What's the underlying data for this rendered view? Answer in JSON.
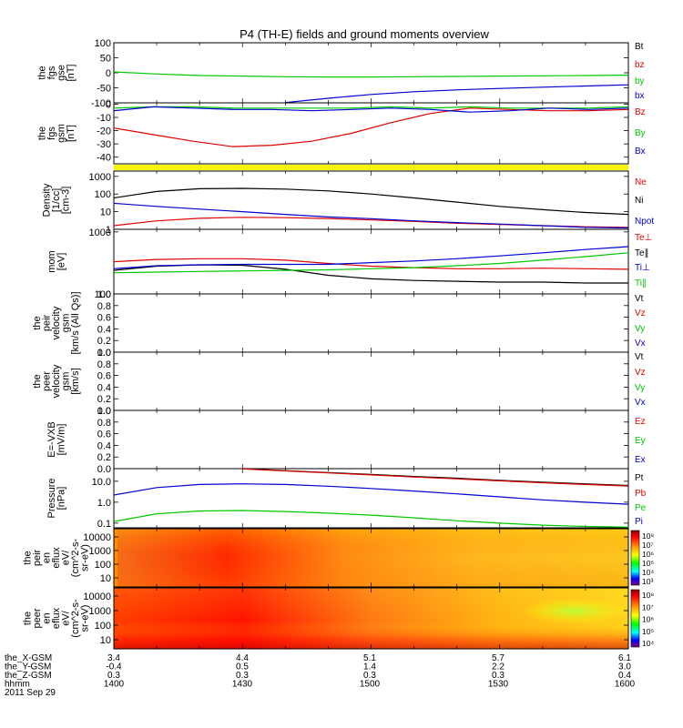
{
  "title": "P4 (TH-E) fields and ground moments overview",
  "colors": {
    "red": "#e00000",
    "green": "#00c800",
    "blue": "#0000d0",
    "black": "#000000",
    "yellow": "#f5f500"
  },
  "chart_data": [
    {
      "type": "line",
      "panel": "fgs-gse",
      "ylabel": [
        "the",
        "fgs",
        "gse",
        "[nT]"
      ],
      "ylim": [
        -100,
        100
      ],
      "yticks": [
        "100",
        "50",
        "0",
        "-50",
        "-100"
      ],
      "x": [
        1400,
        1410,
        1420,
        1430,
        1440,
        1450,
        1500,
        1510,
        1520,
        1530,
        1540,
        1550,
        1600
      ],
      "series": [
        {
          "name": "Bt",
          "color": "#000000",
          "values": [
            null,
            null,
            null,
            null,
            null,
            null,
            null,
            null,
            null,
            null,
            null,
            null,
            100
          ]
        },
        {
          "name": "bz",
          "color": "#e00000",
          "values": [
            null,
            null,
            null,
            null,
            null,
            null,
            null,
            null,
            null,
            null,
            null,
            null,
            100
          ]
        },
        {
          "name": "by",
          "color": "#00c800",
          "values": [
            3,
            -4,
            -9,
            -11,
            -13,
            -14,
            -14,
            -13,
            -12,
            -11,
            -10,
            -9,
            -8
          ]
        },
        {
          "name": "bx",
          "color": "#0000d0",
          "values": [
            null,
            null,
            null,
            null,
            -99,
            -85,
            -72,
            -63,
            -57,
            -52,
            -48,
            -44,
            -40
          ]
        }
      ],
      "legend": [
        "Bt",
        "bz",
        "by",
        "bx"
      ]
    },
    {
      "type": "line",
      "panel": "fgs-gsm",
      "ylabel": [
        "the",
        "fgs",
        "gsm",
        "[nT]"
      ],
      "ylim": [
        -45,
        1
      ],
      "yticks": [
        "0",
        "-10",
        "-20",
        "-30",
        "-40"
      ],
      "x": [
        1400,
        1405,
        1410,
        1420,
        1430,
        1440,
        1450,
        1500,
        1510,
        1520,
        1530,
        1540,
        1550,
        1600
      ],
      "series": [
        {
          "name": "Bz",
          "color": "#e00000",
          "values": [
            -18,
            -23,
            -28,
            -32,
            -31,
            -28,
            -22,
            -14,
            -7,
            -3,
            -4,
            -5,
            -5,
            -4
          ]
        },
        {
          "name": "By",
          "color": "#00c800",
          "values": [
            -3,
            -2,
            -2,
            -3,
            -3,
            -3,
            -3,
            -2,
            -3,
            -2,
            -3,
            -3,
            -3,
            -2
          ]
        },
        {
          "name": "Bx",
          "color": "#0000d0",
          "values": [
            -5,
            -2,
            -3,
            -4,
            -4,
            -5,
            -4,
            -3,
            -4,
            -6,
            -5,
            -3,
            -4,
            -3
          ]
        }
      ],
      "legend": [
        "Bz",
        "By",
        "Bx"
      ]
    },
    {
      "type": "line",
      "panel": "density",
      "ylabel": [
        "Density",
        "[1/cc]",
        "[cm-3]"
      ],
      "scale": "log",
      "ylim": [
        1,
        2000
      ],
      "yticks": [
        "1000",
        "100",
        "10",
        "1"
      ],
      "x": [
        1400,
        1410,
        1420,
        1430,
        1440,
        1450,
        1500,
        1510,
        1520,
        1530,
        1540,
        1550,
        1600
      ],
      "series": [
        {
          "name": "Ne",
          "color": "#e00000",
          "values": [
            1.6,
            3,
            4.2,
            4.8,
            4.6,
            4.1,
            3.4,
            2.8,
            2.2,
            1.9,
            1.6,
            1.4,
            1.3
          ]
        },
        {
          "name": "Ni",
          "color": "#000000",
          "values": [
            60,
            140,
            200,
            210,
            190,
            150,
            100,
            60,
            35,
            20,
            13,
            9,
            7
          ]
        },
        {
          "name": "Npot",
          "color": "#0000d0",
          "values": [
            30,
            20,
            14,
            10,
            7,
            5,
            4,
            3,
            2.4,
            2,
            1.6,
            1.3,
            1.2
          ]
        }
      ],
      "legend": [
        "Ne",
        "Ni",
        "Npot"
      ]
    },
    {
      "type": "line",
      "panel": "mom",
      "ylabel": [
        "mom",
        "[eV]"
      ],
      "scale": "log",
      "ylim": [
        100,
        1100
      ],
      "yticks": [
        "1000",
        "100"
      ],
      "x": [
        1400,
        1410,
        1420,
        1430,
        1440,
        1450,
        1500,
        1510,
        1520,
        1530,
        1540,
        1550,
        1600
      ],
      "series": [
        {
          "name": "Te⊥",
          "color": "#e00000",
          "values": [
            330,
            360,
            370,
            370,
            350,
            310,
            280,
            265,
            255,
            255,
            260,
            255,
            250
          ]
        },
        {
          "name": "Te∥",
          "color": "#000000",
          "values": [
            240,
            280,
            295,
            290,
            250,
            200,
            175,
            165,
            160,
            155,
            155,
            150,
            150
          ]
        },
        {
          "name": "Ti⊥",
          "color": "#0000d0",
          "values": [
            255,
            285,
            295,
            300,
            300,
            300,
            320,
            340,
            370,
            410,
            460,
            520,
            580
          ]
        },
        {
          "name": "Ti∥",
          "color": "#00c800",
          "values": [
            220,
            225,
            230,
            235,
            240,
            245,
            255,
            265,
            285,
            310,
            350,
            400,
            460
          ]
        }
      ],
      "legend": [
        "Te⊥",
        "Te∥",
        "Ti⊥",
        "Ti∥"
      ]
    },
    {
      "type": "line",
      "panel": "peir-velocity",
      "ylabel": [
        "the",
        "peir",
        "velocity",
        "gsm",
        "[km/s (All Qs)]"
      ],
      "ylim": [
        0,
        1
      ],
      "yticks": [
        "1.0",
        "0.8",
        "0.6",
        "0.4",
        "0.2",
        "0.0"
      ],
      "series": [],
      "legend": [
        "Vt",
        "Vz",
        "Vy",
        "Vx"
      ]
    },
    {
      "type": "line",
      "panel": "peer-velocity",
      "ylabel": [
        "the",
        "peer",
        "velocity",
        "gsm",
        "[km/s]"
      ],
      "ylim": [
        0,
        1
      ],
      "yticks": [
        "1.0",
        "0.8",
        "0.6",
        "0.4",
        "0.2",
        "0.0"
      ],
      "series": [],
      "legend": [
        "Vt",
        "Vz",
        "Vy",
        "Vx"
      ]
    },
    {
      "type": "line",
      "panel": "exb",
      "ylabel": [
        "E=-VXB",
        "[mV/m]"
      ],
      "ylim": [
        0,
        1
      ],
      "yticks": [
        "1.0",
        "0.8",
        "0.6",
        "0.4",
        "0.2",
        "0.0"
      ],
      "series": [],
      "legend": [
        "Ez",
        "Ey",
        "Ex"
      ]
    },
    {
      "type": "line",
      "panel": "pressure",
      "ylabel": [
        "Pressure",
        "[nPa]"
      ],
      "scale": "log",
      "ylim": [
        0.06,
        40
      ],
      "yticks": [
        "10.0",
        "1.0",
        "0.1"
      ],
      "x": [
        1400,
        1410,
        1420,
        1430,
        1440,
        1450,
        1500,
        1510,
        1520,
        1530,
        1540,
        1550,
        1600
      ],
      "series": [
        {
          "name": "Pt",
          "color": "#000000",
          "values": [
            null,
            null,
            null,
            40,
            32,
            26,
            21,
            17,
            14,
            11,
            9,
            7.5,
            6.3
          ]
        },
        {
          "name": "Pb",
          "color": "#e00000",
          "values": [
            null,
            null,
            null,
            39,
            31,
            25,
            20,
            16,
            13,
            10.5,
            8.5,
            7,
            5.9
          ]
        },
        {
          "name": "Pe",
          "color": "#00c800",
          "values": [
            0.12,
            0.28,
            0.38,
            0.4,
            0.36,
            0.3,
            0.24,
            0.18,
            0.13,
            0.1,
            0.08,
            0.07,
            0.065
          ]
        },
        {
          "name": "Pi",
          "color": "#0000d0",
          "values": [
            2.2,
            5,
            7,
            7.5,
            7,
            5.8,
            4.5,
            3.4,
            2.5,
            1.8,
            1.3,
            1,
            0.8
          ]
        }
      ],
      "legend": [
        "Pt",
        "Pb",
        "Pe",
        "Pi"
      ]
    },
    {
      "type": "heatmap",
      "panel": "peir-en-eflux",
      "ylabel": [
        "the",
        "peir",
        "en",
        "eflux",
        "eV/",
        "(cm^2-s-",
        "sr-eV)"
      ],
      "yticks": [
        "10000",
        "1000",
        "100",
        "10"
      ],
      "colorbar_ticks": [
        "10⁸",
        "10⁷",
        "10⁶",
        "10⁵",
        "10⁴",
        "10³"
      ]
    },
    {
      "type": "heatmap",
      "panel": "peer-en-eflux",
      "ylabel": [
        "the",
        "peer",
        "en",
        "eflux",
        "eV/",
        "(cm^2-s-",
        "sr-eV)"
      ],
      "yticks": [
        "10000",
        "1000",
        "100",
        "10"
      ],
      "colorbar_ticks": [
        "10⁸",
        "10⁷",
        "10⁶",
        "10⁵",
        "10⁴"
      ]
    }
  ],
  "ephemeris": {
    "rows": [
      {
        "label": "the_X-GSM",
        "values": [
          "3.4",
          "4.4",
          "5.1",
          "5.7",
          "6.1"
        ]
      },
      {
        "label": "the_Y-GSM",
        "values": [
          "-0.4",
          "0.5",
          "1.4",
          "2.2",
          "3.0"
        ]
      },
      {
        "label": "the_Z-GSM",
        "values": [
          "0.3",
          "0.3",
          "0.3",
          "0.3",
          "0.4"
        ]
      },
      {
        "label": "hhmm",
        "values": [
          "1400",
          "1430",
          "1500",
          "1530",
          "1600"
        ]
      }
    ],
    "date": "2011 Sep 29"
  }
}
